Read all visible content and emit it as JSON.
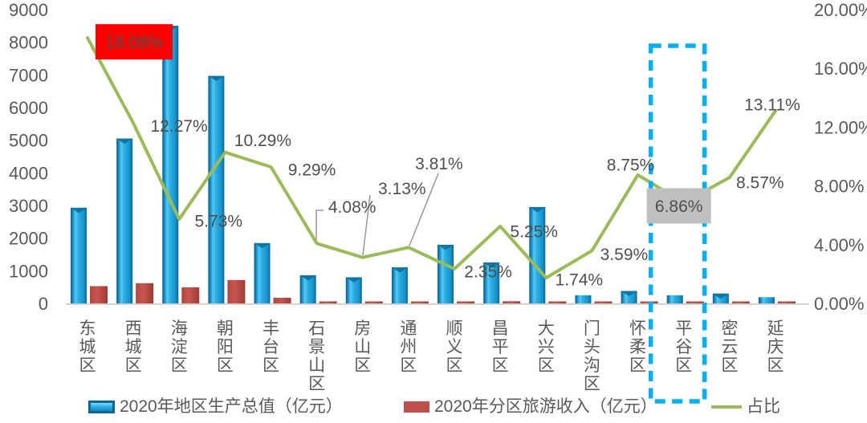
{
  "chart_data": {
    "type": "combo-bar-line",
    "categories": [
      "东城区",
      "西城区",
      "海淀区",
      "朝阳区",
      "丰台区",
      "石景山区",
      "房山区",
      "通州区",
      "顺义区",
      "昌平区",
      "大兴区",
      "门头沟区",
      "怀柔区",
      "平谷区",
      "密云区",
      "延庆区"
    ],
    "series": [
      {
        "name": "2020年地区生产总值（亿元）",
        "type": "bar",
        "color": "#1fa3dc",
        "values": [
          2930,
          5050,
          8505,
          6970,
          1847,
          862,
          800,
          1104,
          1795,
          1255,
          2950,
          250,
          380,
          250,
          300,
          190
        ]
      },
      {
        "name": "2020年分区旅游收入（亿元）",
        "type": "bar",
        "color": "#c0504d",
        "values": [
          529,
          619,
          492,
          717,
          172,
          35,
          25,
          42,
          42,
          66,
          51,
          9,
          33,
          17,
          26,
          25
        ]
      },
      {
        "name": "占比",
        "type": "line",
        "color": "#9bbb59",
        "values": [
          18.08,
          12.27,
          5.73,
          10.29,
          9.29,
          4.08,
          3.13,
          3.81,
          2.35,
          5.25,
          1.74,
          3.59,
          8.75,
          6.86,
          8.57,
          13.11
        ],
        "point_labels": [
          "18.08%",
          "12.27%",
          "5.73%",
          "10.29%",
          "9.29%",
          "4.08%",
          "3.13%",
          "3.81%",
          "2.35%",
          "5.25%",
          "1.74%",
          "3.59%",
          "8.75%",
          "6.86%",
          "8.57%",
          "13.11%"
        ]
      }
    ],
    "left_axis": {
      "min": 0,
      "max": 9000,
      "ticks": [
        "9000",
        "8000",
        "7000",
        "6000",
        "5000",
        "4000",
        "3000",
        "2000",
        "1000",
        "0"
      ]
    },
    "right_axis": {
      "min": 0,
      "max": 20,
      "ticks": [
        "20.00%",
        "16.00%",
        "12.00%",
        "8.00%",
        "4.00%",
        "0.00%"
      ]
    },
    "annotations": {
      "max_highlight": {
        "label": "18.08%",
        "category": "东城区",
        "box_color": "#ff0000"
      },
      "value_highlight": {
        "label": "6.86%",
        "category": "平谷区",
        "box_color": "#bfbfbf"
      },
      "dashed_focus_box": {
        "category": "平谷区",
        "color": "#00b0f0"
      }
    },
    "legend": [
      {
        "label": "2020年地区生产总值（亿元）",
        "marker": "bar-blue"
      },
      {
        "label": "2020年分区旅游收入（亿元）",
        "marker": "bar-red"
      },
      {
        "label": "占比",
        "marker": "line-green"
      }
    ],
    "grid": "off",
    "legend_position": "bottom"
  }
}
